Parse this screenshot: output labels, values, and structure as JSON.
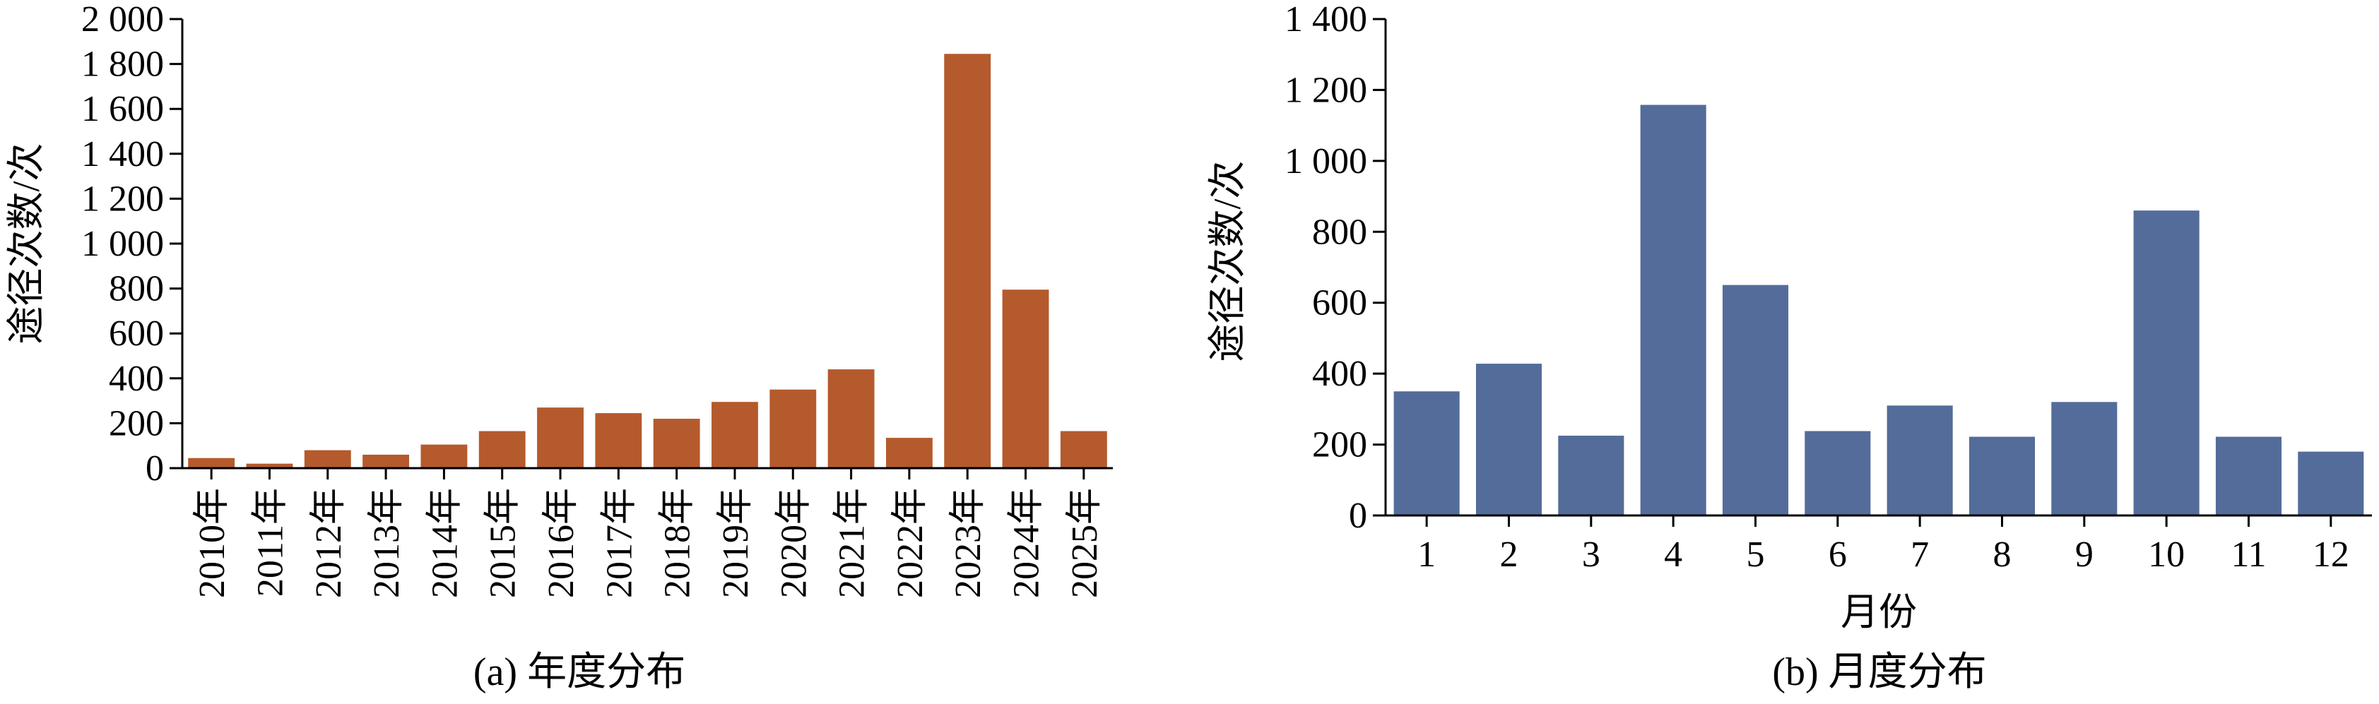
{
  "chart_data": [
    {
      "type": "bar",
      "caption": "(a) 年度分布",
      "ylabel": "途径次数/次",
      "xlabel": "",
      "ylim": [
        0,
        2000
      ],
      "yticks": [
        "0",
        "200",
        "400",
        "600",
        "800",
        "1 000",
        "1 200",
        "1 400",
        "1 600",
        "1 800",
        "2 000"
      ],
      "ytick_values": [
        0,
        200,
        400,
        600,
        800,
        1000,
        1200,
        1400,
        1600,
        1800,
        2000
      ],
      "categories": [
        "2010年",
        "2011年",
        "2012年",
        "2013年",
        "2014年",
        "2015年",
        "2016年",
        "2017年",
        "2018年",
        "2019年",
        "2020年",
        "2021年",
        "2022年",
        "2023年",
        "2024年",
        "2025年"
      ],
      "values": [
        45,
        20,
        80,
        60,
        105,
        165,
        270,
        245,
        220,
        295,
        350,
        440,
        135,
        1845,
        795,
        165
      ],
      "color": "#b55a2c"
    },
    {
      "type": "bar",
      "caption": "(b) 月度分布",
      "ylabel": "途径次数/次",
      "xlabel": "月份",
      "ylim": [
        0,
        1400
      ],
      "yticks": [
        "0",
        "200",
        "400",
        "600",
        "800",
        "1 000",
        "1 200",
        "1 400"
      ],
      "ytick_values": [
        0,
        200,
        400,
        600,
        800,
        1000,
        1200,
        1400
      ],
      "categories": [
        "1",
        "2",
        "3",
        "4",
        "5",
        "6",
        "7",
        "8",
        "9",
        "10",
        "11",
        "12"
      ],
      "values": [
        350,
        428,
        225,
        1158,
        650,
        238,
        310,
        222,
        320,
        860,
        222,
        180
      ],
      "color": "#536c9a"
    }
  ]
}
